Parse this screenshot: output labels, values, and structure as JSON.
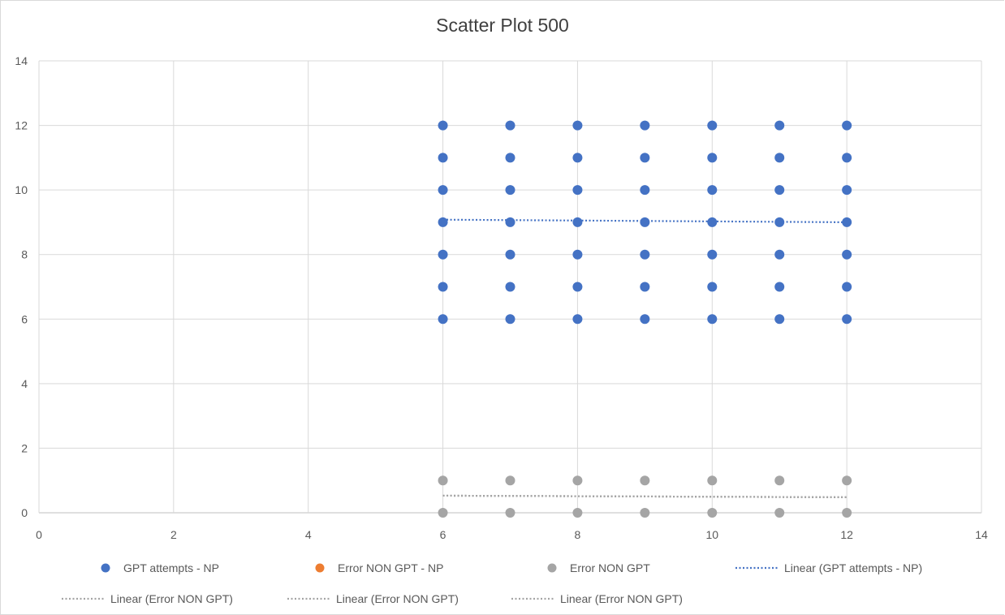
{
  "chart_data": {
    "type": "scatter",
    "title": "Scatter Plot 500",
    "xlabel": "",
    "ylabel": "",
    "xlim": [
      0,
      14
    ],
    "ylim": [
      0,
      14
    ],
    "x_ticks": [
      0,
      2,
      4,
      6,
      8,
      10,
      12,
      14
    ],
    "y_ticks": [
      0,
      2,
      4,
      6,
      8,
      10,
      12,
      14
    ],
    "grid": true,
    "legend_position": "bottom",
    "series": [
      {
        "name": "GPT attempts - NP",
        "color": "#4472C4",
        "points": [
          [
            6,
            6
          ],
          [
            6,
            7
          ],
          [
            6,
            8
          ],
          [
            6,
            9
          ],
          [
            6,
            10
          ],
          [
            6,
            11
          ],
          [
            6,
            12
          ],
          [
            7,
            6
          ],
          [
            7,
            7
          ],
          [
            7,
            8
          ],
          [
            7,
            9
          ],
          [
            7,
            10
          ],
          [
            7,
            11
          ],
          [
            7,
            12
          ],
          [
            8,
            6
          ],
          [
            8,
            7
          ],
          [
            8,
            8
          ],
          [
            8,
            9
          ],
          [
            8,
            10
          ],
          [
            8,
            11
          ],
          [
            8,
            12
          ],
          [
            9,
            6
          ],
          [
            9,
            7
          ],
          [
            9,
            8
          ],
          [
            9,
            9
          ],
          [
            9,
            10
          ],
          [
            9,
            11
          ],
          [
            9,
            12
          ],
          [
            10,
            6
          ],
          [
            10,
            7
          ],
          [
            10,
            8
          ],
          [
            10,
            9
          ],
          [
            10,
            10
          ],
          [
            10,
            11
          ],
          [
            10,
            12
          ],
          [
            11,
            6
          ],
          [
            11,
            7
          ],
          [
            11,
            8
          ],
          [
            11,
            9
          ],
          [
            11,
            10
          ],
          [
            11,
            11
          ],
          [
            11,
            12
          ],
          [
            12,
            6
          ],
          [
            12,
            7
          ],
          [
            12,
            8
          ],
          [
            12,
            9
          ],
          [
            12,
            10
          ],
          [
            12,
            11
          ],
          [
            12,
            12
          ]
        ]
      },
      {
        "name": "Error NON GPT - NP",
        "color": "#ED7D31",
        "points": []
      },
      {
        "name": "Error NON GPT",
        "color": "#A5A5A5",
        "points": [
          [
            6,
            0
          ],
          [
            6,
            1
          ],
          [
            7,
            0
          ],
          [
            7,
            1
          ],
          [
            8,
            0
          ],
          [
            8,
            1
          ],
          [
            9,
            0
          ],
          [
            9,
            1
          ],
          [
            10,
            0
          ],
          [
            10,
            1
          ],
          [
            11,
            0
          ],
          [
            11,
            1
          ],
          [
            12,
            0
          ],
          [
            12,
            1
          ]
        ]
      }
    ],
    "trendlines": [
      {
        "name": "Linear (GPT attempts - NP)",
        "color": "#4472C4",
        "x": [
          6,
          12
        ],
        "y": [
          9.08,
          9.0
        ]
      },
      {
        "name": "Linear (Error NON GPT)",
        "color": "#A5A5A5",
        "x": [
          6,
          12
        ],
        "y": [
          0.53,
          0.48
        ]
      },
      {
        "name": "Linear (Error NON GPT)",
        "color": "#A5A5A5",
        "x": [
          6,
          12
        ],
        "y": [
          0.53,
          0.48
        ]
      },
      {
        "name": "Linear (Error NON GPT)",
        "color": "#A5A5A5",
        "x": [
          6,
          12
        ],
        "y": [
          0.53,
          0.48
        ]
      }
    ],
    "legend": [
      {
        "label": "GPT attempts - NP",
        "kind": "marker",
        "color": "#4472C4"
      },
      {
        "label": "Error NON GPT - NP",
        "kind": "marker",
        "color": "#ED7D31"
      },
      {
        "label": "Error NON GPT",
        "kind": "marker",
        "color": "#A5A5A5"
      },
      {
        "label": "Linear (GPT attempts - NP)",
        "kind": "line",
        "color": "#4472C4"
      },
      {
        "label": "Linear (Error NON GPT)",
        "kind": "line",
        "color": "#A5A5A5"
      },
      {
        "label": "Linear (Error NON GPT)",
        "kind": "line",
        "color": "#A5A5A5"
      },
      {
        "label": "Linear (Error NON GPT)",
        "kind": "line",
        "color": "#A5A5A5"
      }
    ]
  }
}
